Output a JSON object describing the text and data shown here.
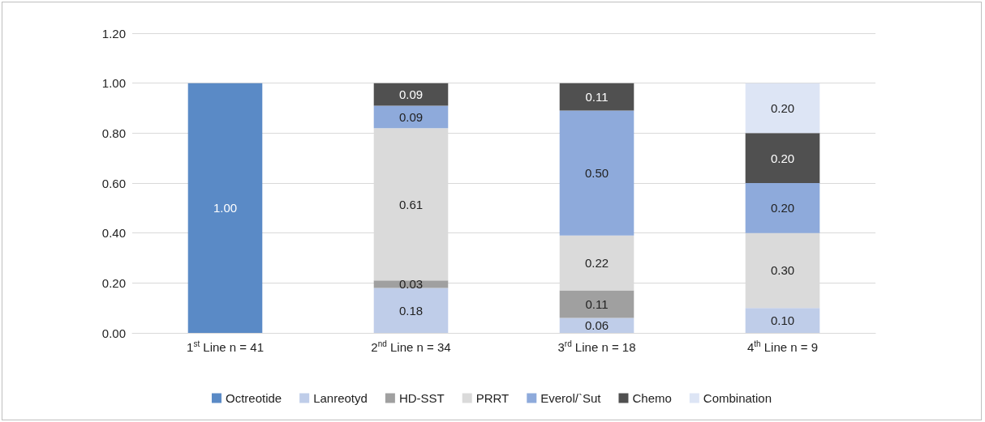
{
  "chart_data": {
    "type": "bar",
    "stacked": true,
    "categories": [
      "1$^{st}$ Line n = 41",
      "2$^{nd}$ Line n = 34",
      "3$^{rd}$ Line n = 18",
      "4$^{th}$ Line n = 9"
    ],
    "series": [
      {
        "name": "Octreotide",
        "color": "#5a8ac6",
        "values": [
          1.0,
          null,
          null,
          null
        ],
        "value_labels": [
          "1.00",
          null,
          null,
          null
        ]
      },
      {
        "name": "Lanreotyd",
        "color": "#bfcde9",
        "values": [
          null,
          0.18,
          0.06,
          0.1
        ],
        "value_labels": [
          null,
          "0.18",
          "0.06",
          "0.10"
        ]
      },
      {
        "name": "HD-SST",
        "color": "#a0a0a0",
        "values": [
          null,
          0.03,
          0.11,
          null
        ],
        "value_labels": [
          null,
          "0.03",
          "0.11",
          null
        ]
      },
      {
        "name": "PRRT",
        "color": "#dadada",
        "values": [
          null,
          0.61,
          0.22,
          0.3
        ],
        "value_labels": [
          null,
          "0.61",
          "0.22",
          "0.30"
        ]
      },
      {
        "name": "Everol/`Sut",
        "color": "#8eaadb",
        "values": [
          null,
          0.09,
          0.5,
          0.2
        ],
        "value_labels": [
          null,
          "0.09",
          "0.50",
          "0.20"
        ]
      },
      {
        "name": "Chemo",
        "color": "#505050",
        "values": [
          null,
          0.09,
          0.11,
          0.2
        ],
        "value_labels": [
          null,
          "0.09",
          "0.11",
          "0.20"
        ]
      },
      {
        "name": "Combination",
        "color": "#dde5f5",
        "values": [
          null,
          null,
          null,
          0.2
        ],
        "value_labels": [
          null,
          null,
          null,
          "0.20"
        ]
      }
    ],
    "ylim": [
      0,
      1.2
    ],
    "yticks": [
      {
        "value": 0,
        "label": "0.00"
      },
      {
        "value": 0.2,
        "label": "0.20"
      },
      {
        "value": 0.4,
        "label": "0.40"
      },
      {
        "value": 0.6,
        "label": "0.60"
      },
      {
        "value": 0.8,
        "label": "0.80"
      },
      {
        "value": 1,
        "label": "1.00"
      },
      {
        "value": 1.2,
        "label": "1.20"
      }
    ],
    "grid": "y",
    "legend": "bottom"
  }
}
